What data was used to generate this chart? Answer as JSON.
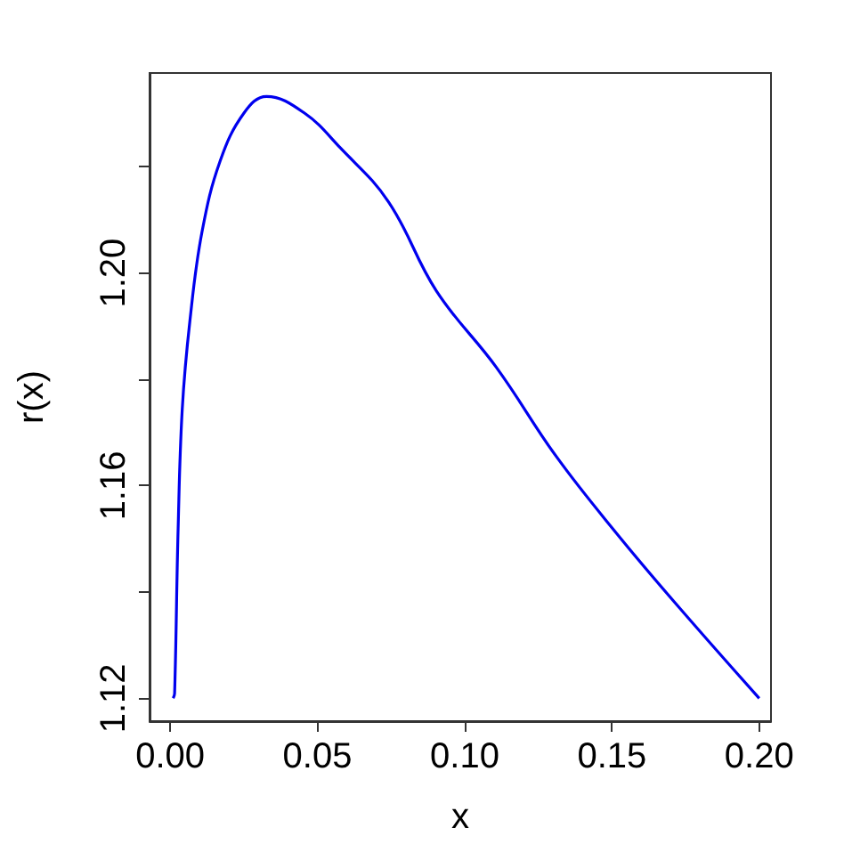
{
  "chart_data": {
    "type": "line",
    "xlabel": "x",
    "ylabel": "r(x)",
    "x": [
      0.001,
      0.0015,
      0.0027,
      0.0041,
      0.0067,
      0.0108,
      0.017,
      0.0251,
      0.0327,
      0.0455,
      0.0578,
      0.0741,
      0.0904,
      0.1108,
      0.1312,
      0.1516,
      0.172,
      0.2
    ],
    "series": [
      {
        "color": "#0000ee",
        "values": [
          1.12,
          1.1209,
          1.152,
          1.1744,
          1.191,
          1.2077,
          1.2211,
          1.2301,
          1.2332,
          1.2301,
          1.2235,
          1.2134,
          1.1966,
          1.1822,
          1.1654,
          1.151,
          1.1376,
          1.12
        ]
      }
    ],
    "xlim": [
      -0.007,
      0.204
    ],
    "ylim": [
      1.1157,
      1.2376
    ],
    "xticks": [
      {
        "value": 0,
        "label": "0.00"
      },
      0.05,
      {
        "value": 0.1,
        "label": "0.10"
      },
      0.15,
      {
        "value": 0.2,
        "label": "0.20"
      }
    ],
    "yticks": [
      1.12,
      {
        "value": 1.14,
        "label": null
      },
      1.16,
      {
        "value": 1.18,
        "label": null
      },
      {
        "value": 1.2,
        "label": "1.20"
      },
      {
        "value": 1.22,
        "label": null
      }
    ],
    "grid": false,
    "marker": "none",
    "line_style": "solid"
  }
}
